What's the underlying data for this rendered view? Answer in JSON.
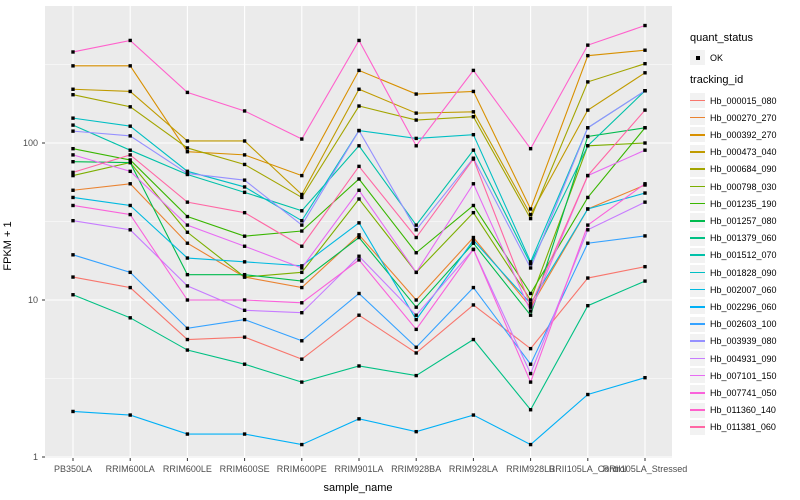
{
  "figure": {
    "panel_background": "#EBEBEB",
    "gridline_color": "#FFFFFF",
    "tick_text_color": "#4D4D4D",
    "point_color": "#000000"
  },
  "chart_data": {
    "type": "line",
    "title": "",
    "xlabel": "sample_name",
    "ylabel": "FPKM + 1",
    "y_scale": "log10",
    "y_ticks": [
      "1",
      "10",
      "100"
    ],
    "grid": true,
    "legend_position": "right",
    "x_categories": [
      "PB350LA",
      "RRIM600LA",
      "RRIM600LE",
      "RRIM600SE",
      "RRIM600PE",
      "RRIM901LA",
      "RRIM928BA",
      "RRIM928LA",
      "RRIM928LB",
      "RRII105LA_Control",
      "RRII105LA_Stressed"
    ],
    "legend": {
      "quant_status": {
        "title": "quant_status",
        "items": [
          "OK"
        ]
      },
      "tracking_id": {
        "title": "tracking_id"
      }
    },
    "series": [
      {
        "name": "Hb_000015_080",
        "color": "#F8766D",
        "values": [
          14,
          12,
          5.6,
          5.8,
          4.2,
          8.0,
          4.6,
          9.3,
          4.9,
          13.8,
          16.3
        ]
      },
      {
        "name": "Hb_000270_270",
        "color": "#EA8331",
        "values": [
          50,
          55,
          23,
          14,
          12,
          26,
          10,
          25,
          9.0,
          38,
          54
        ]
      },
      {
        "name": "Hb_000392_270",
        "color": "#D89000",
        "values": [
          310,
          310,
          88,
          84,
          62,
          290,
          205,
          213,
          38,
          360,
          390
        ]
      },
      {
        "name": "Hb_000473_040",
        "color": "#C09B00",
        "values": [
          220,
          213,
          103,
          103,
          47,
          220,
          155,
          158,
          35,
          162,
          280
        ]
      },
      {
        "name": "Hb_000684_090",
        "color": "#A3A500",
        "values": [
          203,
          170,
          93,
          73,
          45,
          172,
          140,
          147,
          33,
          245,
          320
        ]
      },
      {
        "name": "Hb_000798_030",
        "color": "#7CAE00",
        "values": [
          62,
          75,
          27,
          14,
          15,
          44,
          15,
          36,
          10,
          96,
          100
        ]
      },
      {
        "name": "Hb_001235_190",
        "color": "#39B600",
        "values": [
          92,
          78,
          34,
          25.5,
          27.5,
          59,
          20,
          40,
          11,
          45,
          125
        ]
      },
      {
        "name": "Hb_001257_080",
        "color": "#00BB4E",
        "values": [
          76,
          75,
          14.5,
          14.5,
          13.2,
          25,
          9,
          23,
          8,
          110,
          125
        ]
      },
      {
        "name": "Hb_001379_060",
        "color": "#00C083",
        "values": [
          10.8,
          7.7,
          4.8,
          3.9,
          3.0,
          3.8,
          3.3,
          5.6,
          2.0,
          9.2,
          13.2
        ]
      },
      {
        "name": "Hb_001512_070",
        "color": "#00C1A9",
        "values": [
          130,
          90,
          63,
          48.5,
          37,
          96,
          30,
          90,
          17,
          96,
          215
        ]
      },
      {
        "name": "Hb_001828_090",
        "color": "#00BFC4",
        "values": [
          144,
          128,
          66,
          52.5,
          32,
          120,
          107,
          113,
          17.5,
          125,
          215
        ]
      },
      {
        "name": "Hb_002007_060",
        "color": "#00BAE0",
        "values": [
          45,
          40,
          18.5,
          17.5,
          16.5,
          31,
          7.5,
          24,
          9.5,
          38,
          48
        ]
      },
      {
        "name": "Hb_002296_060",
        "color": "#00B0F6",
        "values": [
          1.95,
          1.85,
          1.4,
          1.4,
          1.2,
          1.75,
          1.45,
          1.85,
          1.2,
          2.5,
          3.2
        ]
      },
      {
        "name": "Hb_002603_100",
        "color": "#35A2FF",
        "values": [
          19.4,
          15,
          6.6,
          7.5,
          5.5,
          11,
          5,
          12,
          3.9,
          23,
          25.6
        ]
      },
      {
        "name": "Hb_003939_080",
        "color": "#9590FF",
        "values": [
          119,
          111,
          64,
          58,
          30,
          120,
          28,
          80,
          16,
          125,
          215
        ]
      },
      {
        "name": "Hb_004931_090",
        "color": "#C77CFF",
        "values": [
          32,
          28,
          12.3,
          8.6,
          8.3,
          19,
          8,
          21,
          3.4,
          28,
          42
        ]
      },
      {
        "name": "Hb_007101_150",
        "color": "#E76BF3",
        "values": [
          84,
          66,
          30,
          22,
          16,
          50,
          15,
          55,
          8.5,
          62,
          90
        ]
      },
      {
        "name": "Hb_007741_050",
        "color": "#FA62DB",
        "values": [
          40,
          35,
          10,
          10,
          9.6,
          18,
          6.5,
          21,
          3.0,
          30,
          55
        ]
      },
      {
        "name": "Hb_011360_140",
        "color": "#FF61CC",
        "values": [
          380,
          450,
          210,
          160,
          106,
          450,
          96,
          290,
          92,
          420,
          560
        ]
      },
      {
        "name": "Hb_011381_060",
        "color": "#FF67A4",
        "values": [
          65,
          84,
          42,
          36,
          22,
          71,
          25,
          79,
          9.2,
          62,
          162
        ]
      }
    ]
  }
}
